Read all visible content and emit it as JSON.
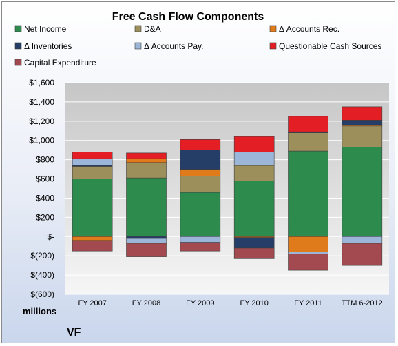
{
  "chart_data": {
    "type": "bar",
    "stacked": true,
    "title": "Free Cash Flow Components",
    "unit_label": "millions",
    "company_label": "VF",
    "categories": [
      "FY 2007",
      "FY 2008",
      "FY 2009",
      "FY 2010",
      "FY 2011",
      "TTM 6-2012"
    ],
    "ylim": [
      -600,
      1600
    ],
    "yticks": [
      1600,
      1400,
      1200,
      1000,
      800,
      600,
      400,
      200,
      0,
      -200,
      -400,
      -600
    ],
    "ytick_labels": [
      "$1,600",
      "$1,400",
      "$1,200",
      "$1,000",
      "$800",
      "$600",
      "$400",
      "$200",
      "$-",
      "$(200)",
      "$(400)",
      "$(600)"
    ],
    "grid": true,
    "legend_position": "top",
    "series": [
      {
        "name": "Net Income",
        "color": "#2e8b4e",
        "values": [
          600,
          610,
          460,
          580,
          890,
          930
        ]
      },
      {
        "name": "D&A",
        "color": "#9c8f5c",
        "values": [
          130,
          160,
          170,
          160,
          190,
          220
        ]
      },
      {
        "name": "Δ Accounts Rec.",
        "color": "#e07b1c",
        "values": [
          -40,
          40,
          70,
          -10,
          -160,
          10
        ]
      },
      {
        "name": "Δ Inventories",
        "color": "#253e68",
        "values": [
          10,
          -20,
          200,
          -110,
          10,
          50
        ]
      },
      {
        "name": "Δ Accounts Pay.",
        "color": "#9bb6d9",
        "values": [
          70,
          -50,
          -60,
          140,
          -20,
          -70
        ]
      },
      {
        "name": "Questionable Cash Sources",
        "color": "#e31e24",
        "values": [
          70,
          60,
          110,
          160,
          160,
          140
        ]
      },
      {
        "name": "Capital Expenditure",
        "color": "#a34a50",
        "values": [
          -110,
          -140,
          -90,
          -110,
          -170,
          -230
        ]
      }
    ]
  }
}
